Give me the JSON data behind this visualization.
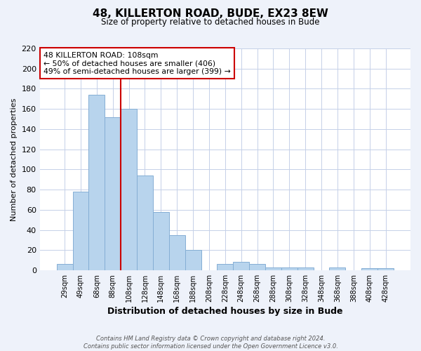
{
  "title": "48, KILLERTON ROAD, BUDE, EX23 8EW",
  "subtitle": "Size of property relative to detached houses in Bude",
  "xlabel": "Distribution of detached houses by size in Bude",
  "ylabel": "Number of detached properties",
  "categories": [
    "29sqm",
    "49sqm",
    "68sqm",
    "88sqm",
    "108sqm",
    "128sqm",
    "148sqm",
    "168sqm",
    "188sqm",
    "208sqm",
    "228sqm",
    "248sqm",
    "268sqm",
    "288sqm",
    "308sqm",
    "328sqm",
    "348sqm",
    "368sqm",
    "388sqm",
    "408sqm",
    "428sqm"
  ],
  "values": [
    6,
    78,
    174,
    152,
    160,
    94,
    58,
    35,
    20,
    0,
    6,
    8,
    6,
    3,
    3,
    3,
    0,
    3,
    0,
    2,
    2
  ],
  "bar_color": "#b8d4ed",
  "bar_edge_color": "#85aed4",
  "highlight_index": 4,
  "highlight_line_color": "#cc0000",
  "annotation_text": "48 KILLERTON ROAD: 108sqm\n← 50% of detached houses are smaller (406)\n49% of semi-detached houses are larger (399) →",
  "annotation_box_color": "#ffffff",
  "annotation_box_edge_color": "#cc0000",
  "ylim": [
    0,
    220
  ],
  "yticks": [
    0,
    20,
    40,
    60,
    80,
    100,
    120,
    140,
    160,
    180,
    200,
    220
  ],
  "footnote": "Contains HM Land Registry data © Crown copyright and database right 2024.\nContains public sector information licensed under the Open Government Licence v3.0.",
  "bg_color": "#eef2fa",
  "plot_bg_color": "#ffffff",
  "grid_color": "#c5d0e8"
}
